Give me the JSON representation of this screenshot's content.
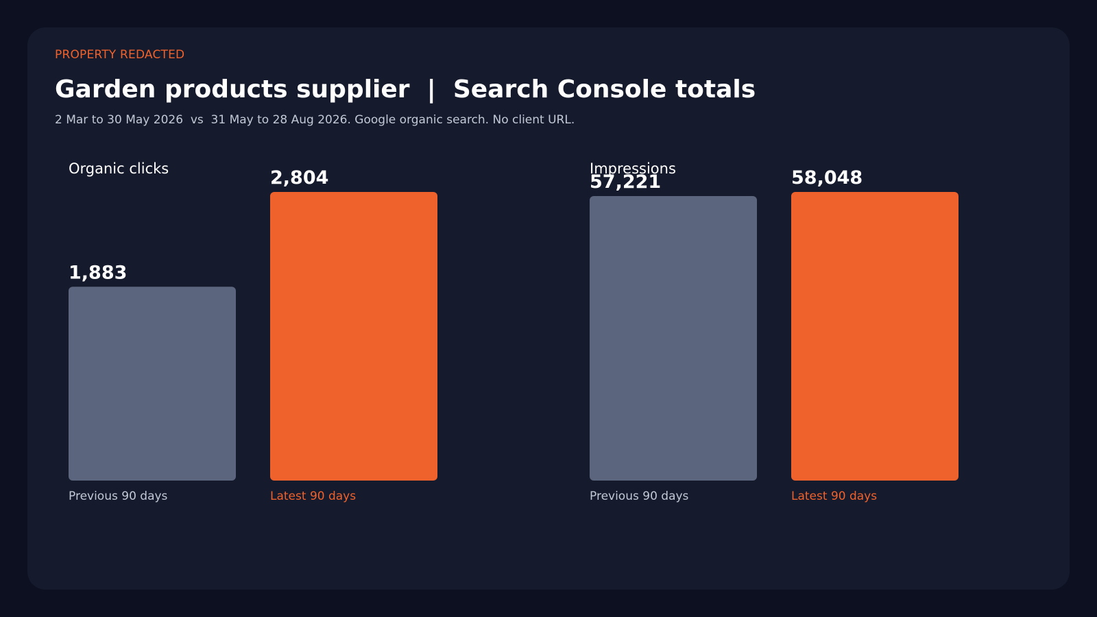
{
  "header": {
    "eyebrow": "PROPERTY REDACTED",
    "title": "Garden products supplier  |  Search Console totals",
    "subtitle": "2 Mar to 30 May 2026  vs  31 May to 28 Aug 2026. Google organic search. No client URL."
  },
  "colors": {
    "background": "#0c1020",
    "card": "#151a2c",
    "previous": "#5c657e",
    "latest": "#f0622c",
    "previous_label": "#c3c8d6",
    "latest_label": "#f0622c"
  },
  "chart_data": [
    {
      "type": "bar",
      "title": "Organic clicks",
      "categories": [
        "Previous 90 days",
        "Latest 90 days"
      ],
      "values": [
        1883,
        2804
      ],
      "value_labels": [
        "1,883",
        "2,804"
      ],
      "ylim": [
        0,
        2804
      ],
      "grid": false,
      "legend": "none"
    },
    {
      "type": "bar",
      "title": "Impressions",
      "categories": [
        "Previous 90 days",
        "Latest 90 days"
      ],
      "values": [
        57221,
        58048
      ],
      "value_labels": [
        "57,221",
        "58,048"
      ],
      "ylim": [
        0,
        58048
      ],
      "grid": false,
      "legend": "none"
    }
  ]
}
